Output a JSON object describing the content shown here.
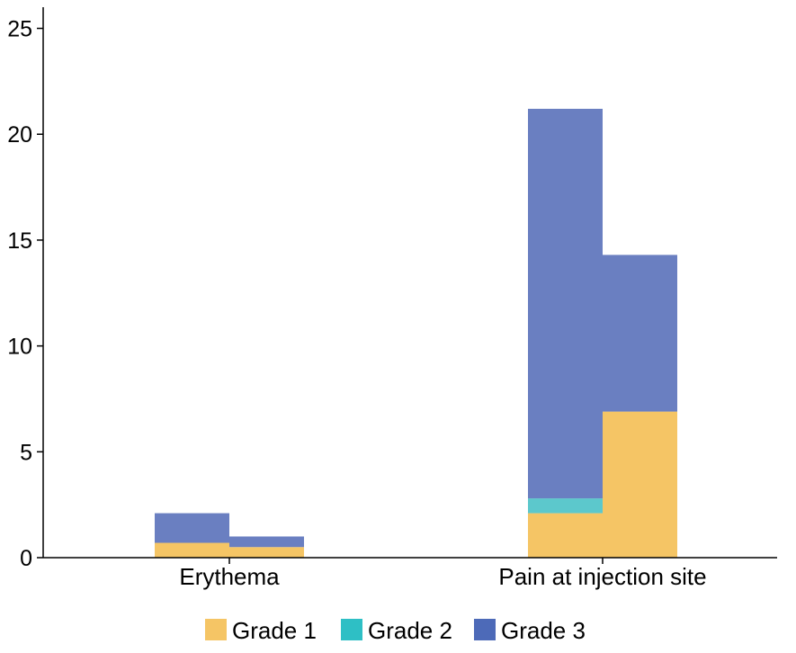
{
  "chart_data": {
    "type": "bar",
    "stacked": true,
    "categories": [
      "Erythema",
      "Pain at injection site"
    ],
    "bars_per_category": 2,
    "ylim": [
      0,
      26
    ],
    "yticks": [
      0,
      5,
      10,
      15,
      20,
      25
    ],
    "grid": false,
    "legend_position": "bottom",
    "series": [
      {
        "name": "Grade 1",
        "color": "#f5c565",
        "values": [
          [
            0.7,
            0.5
          ],
          [
            2.1,
            6.9
          ]
        ]
      },
      {
        "name": "Grade 2",
        "color": "#5cc8cc",
        "values": [
          [
            0.0,
            0.0
          ],
          [
            0.7,
            0.0
          ]
        ]
      },
      {
        "name": "Grade 3",
        "color": "#6a7fc1",
        "values": [
          [
            1.4,
            0.5
          ],
          [
            18.4,
            7.4
          ]
        ]
      }
    ],
    "legend_swatch_colors": [
      "#f5c565",
      "#2ebfc5",
      "#4d6ab8"
    ]
  }
}
